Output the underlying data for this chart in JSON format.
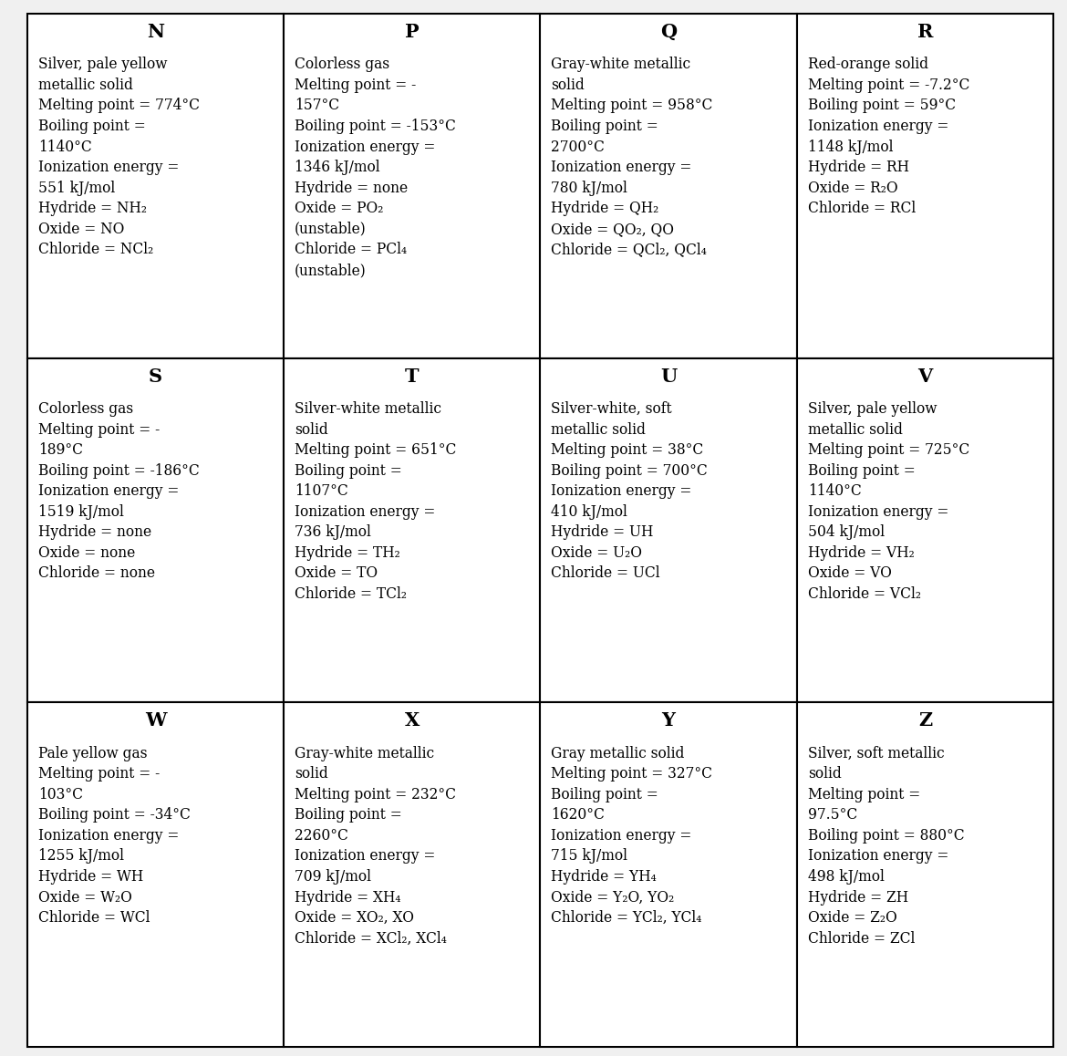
{
  "cells": [
    {
      "label": "N",
      "lines": [
        "Silver, pale yellow",
        "metallic solid",
        "Melting point = 774°C",
        "Boiling point =",
        "1140°C",
        "Ionization energy =",
        "551 kJ/mol",
        "Hydride = NH₂",
        "Oxide = NO",
        "Chloride = NCl₂"
      ]
    },
    {
      "label": "P",
      "lines": [
        "Colorless gas",
        "Melting point = -",
        "157°C",
        "Boiling point = -153°C",
        "Ionization energy =",
        "1346 kJ/mol",
        "Hydride = none",
        "Oxide = PO₂",
        "(unstable)",
        "Chloride = PCl₄",
        "(unstable)"
      ]
    },
    {
      "label": "Q",
      "lines": [
        "Gray-white metallic",
        "solid",
        "Melting point = 958°C",
        "Boiling point =",
        "2700°C",
        "Ionization energy =",
        "780 kJ/mol",
        "Hydride = QH₂",
        "Oxide = QO₂, QO",
        "Chloride = QCl₂, QCl₄"
      ]
    },
    {
      "label": "R",
      "lines": [
        "Red-orange solid",
        "Melting point = -7.2°C",
        "Boiling point = 59°C",
        "Ionization energy =",
        "1148 kJ/mol",
        "Hydride = RH",
        "Oxide = R₂O",
        "Chloride = RCl"
      ]
    },
    {
      "label": "S",
      "lines": [
        "Colorless gas",
        "Melting point = -",
        "189°C",
        "Boiling point = -186°C",
        "Ionization energy =",
        "1519 kJ/mol",
        "Hydride = none",
        "Oxide = none",
        "Chloride = none"
      ]
    },
    {
      "label": "T",
      "lines": [
        "Silver-white metallic",
        "solid",
        "Melting point = 651°C",
        "Boiling point =",
        "1107°C",
        "Ionization energy =",
        "736 kJ/mol",
        "Hydride = TH₂",
        "Oxide = TO",
        "Chloride = TCl₂"
      ]
    },
    {
      "label": "U",
      "lines": [
        "Silver-white, soft",
        "metallic solid",
        "Melting point = 38°C",
        "Boiling point = 700°C",
        "Ionization energy =",
        "410 kJ/mol",
        "Hydride = UH",
        "Oxide = U₂O",
        "Chloride = UCl"
      ]
    },
    {
      "label": "V",
      "lines": [
        "Silver, pale yellow",
        "metallic solid",
        "Melting point = 725°C",
        "Boiling point =",
        "1140°C",
        "Ionization energy =",
        "504 kJ/mol",
        "Hydride = VH₂",
        "Oxide = VO",
        "Chloride = VCl₂"
      ]
    },
    {
      "label": "W",
      "lines": [
        "Pale yellow gas",
        "Melting point = -",
        "103°C",
        "Boiling point = -34°C",
        "Ionization energy =",
        "1255 kJ/mol",
        "Hydride = WH",
        "Oxide = W₂O",
        "Chloride = WCl"
      ]
    },
    {
      "label": "X",
      "lines": [
        "Gray-white metallic",
        "solid",
        "Melting point = 232°C",
        "Boiling point =",
        "2260°C",
        "Ionization energy =",
        "709 kJ/mol",
        "Hydride = XH₄",
        "Oxide = XO₂, XO",
        "Chloride = XCl₂, XCl₄"
      ]
    },
    {
      "label": "Y",
      "lines": [
        "Gray metallic solid",
        "Melting point = 327°C",
        "Boiling point =",
        "1620°C",
        "Ionization energy =",
        "715 kJ/mol",
        "Hydride = YH₄",
        "Oxide = Y₂O, YO₂",
        "Chloride = YCl₂, YCl₄"
      ]
    },
    {
      "label": "Z",
      "lines": [
        "Silver, soft metallic",
        "solid",
        "Melting point =",
        "97.5°C",
        "Boiling point = 880°C",
        "Ionization energy =",
        "498 kJ/mol",
        "Hydride = ZH",
        "Oxide = Z₂O",
        "Chloride = ZCl"
      ]
    }
  ],
  "ncols": 4,
  "nrows": 3,
  "bg_color": "#f0f0f0",
  "cell_bg": "#ffffff",
  "border_color": "#000000",
  "label_fontsize": 15,
  "text_fontsize": 11.2,
  "border_linewidth": 1.5
}
